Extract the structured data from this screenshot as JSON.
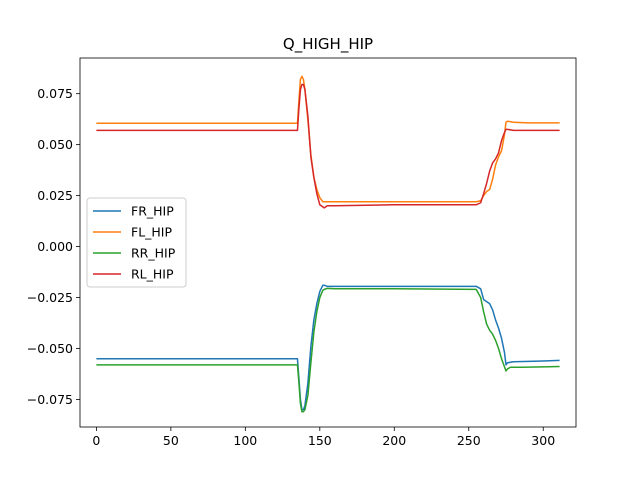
{
  "chart_data": {
    "type": "line",
    "title": "Q_HIGH_HIP",
    "xlabel": "",
    "ylabel": "",
    "xlim": [
      -11,
      322
    ],
    "ylim": [
      -0.0885,
      0.0925
    ],
    "xticks": [
      0,
      50,
      100,
      150,
      200,
      250,
      300
    ],
    "xtick_labels": [
      "0",
      "50",
      "100",
      "150",
      "200",
      "250",
      "300"
    ],
    "yticks": [
      -0.075,
      -0.05,
      -0.025,
      0.0,
      0.025,
      0.05,
      0.075
    ],
    "ytick_labels": [
      "−0.075",
      "−0.050",
      "−0.025",
      "0.000",
      "0.025",
      "0.050",
      "0.075"
    ],
    "grid": false,
    "legend_position": "center-left",
    "series": [
      {
        "name": "FR_HIP",
        "color": "#1f77b4",
        "x": [
          0,
          50,
          100,
          135,
          136,
          137,
          138,
          139,
          140,
          142,
          144,
          146,
          148,
          150,
          152,
          153,
          155,
          160,
          200,
          255,
          258,
          260,
          262,
          264,
          266,
          268,
          270,
          272,
          274,
          275,
          276,
          280,
          290,
          300,
          311
        ],
        "y": [
          -0.055,
          -0.055,
          -0.055,
          -0.055,
          -0.065,
          -0.075,
          -0.08,
          -0.08,
          -0.078,
          -0.067,
          -0.049,
          -0.036,
          -0.028,
          -0.022,
          -0.019,
          -0.019,
          -0.0195,
          -0.0195,
          -0.0195,
          -0.0195,
          -0.0207,
          -0.026,
          -0.027,
          -0.028,
          -0.031,
          -0.036,
          -0.04,
          -0.045,
          -0.052,
          -0.058,
          -0.057,
          -0.0565,
          -0.0563,
          -0.0561,
          -0.0558
        ]
      },
      {
        "name": "FL_HIP",
        "color": "#ff7f0e",
        "x": [
          0,
          50,
          100,
          135,
          136,
          137,
          138,
          139,
          140,
          142,
          144,
          146,
          148,
          150,
          152,
          155,
          160,
          200,
          255,
          258,
          260,
          262,
          264,
          266,
          268,
          270,
          272,
          274,
          275,
          276,
          280,
          290,
          300,
          311
        ],
        "y": [
          0.0605,
          0.0605,
          0.0605,
          0.0605,
          0.072,
          0.082,
          0.0835,
          0.082,
          0.077,
          0.062,
          0.045,
          0.034,
          0.028,
          0.024,
          0.022,
          0.022,
          0.022,
          0.022,
          0.022,
          0.0225,
          0.025,
          0.027,
          0.028,
          0.033,
          0.04,
          0.044,
          0.047,
          0.055,
          0.061,
          0.0615,
          0.061,
          0.0607,
          0.0607,
          0.0607
        ]
      },
      {
        "name": "RR_HIP",
        "color": "#2ca02c",
        "x": [
          0,
          50,
          100,
          135,
          136,
          137,
          138,
          139,
          140,
          142,
          144,
          146,
          148,
          150,
          152,
          153,
          155,
          160,
          200,
          255,
          258,
          260,
          262,
          264,
          266,
          268,
          270,
          272,
          274,
          275,
          276,
          278,
          285,
          300,
          311
        ],
        "y": [
          -0.058,
          -0.058,
          -0.058,
          -0.058,
          -0.067,
          -0.077,
          -0.081,
          -0.081,
          -0.08,
          -0.073,
          -0.057,
          -0.042,
          -0.032,
          -0.025,
          -0.0215,
          -0.021,
          -0.0205,
          -0.0207,
          -0.0207,
          -0.021,
          -0.025,
          -0.032,
          -0.038,
          -0.041,
          -0.043,
          -0.046,
          -0.05,
          -0.055,
          -0.059,
          -0.061,
          -0.06,
          -0.0592,
          -0.0592,
          -0.059,
          -0.0588
        ]
      },
      {
        "name": "RL_HIP",
        "color": "#d62728",
        "x": [
          0,
          50,
          100,
          135,
          136,
          137,
          138,
          139,
          140,
          142,
          144,
          146,
          148,
          150,
          152,
          153,
          155,
          160,
          200,
          255,
          258,
          260,
          262,
          264,
          266,
          268,
          270,
          272,
          274,
          275,
          276,
          280,
          290,
          300,
          311
        ],
        "y": [
          0.057,
          0.057,
          0.057,
          0.057,
          0.068,
          0.077,
          0.0795,
          0.0795,
          0.077,
          0.064,
          0.044,
          0.034,
          0.026,
          0.0205,
          0.0195,
          0.019,
          0.02,
          0.02,
          0.0205,
          0.0205,
          0.0215,
          0.026,
          0.031,
          0.037,
          0.041,
          0.043,
          0.046,
          0.052,
          0.056,
          0.0575,
          0.0575,
          0.057,
          0.057,
          0.057,
          0.057
        ]
      }
    ]
  }
}
